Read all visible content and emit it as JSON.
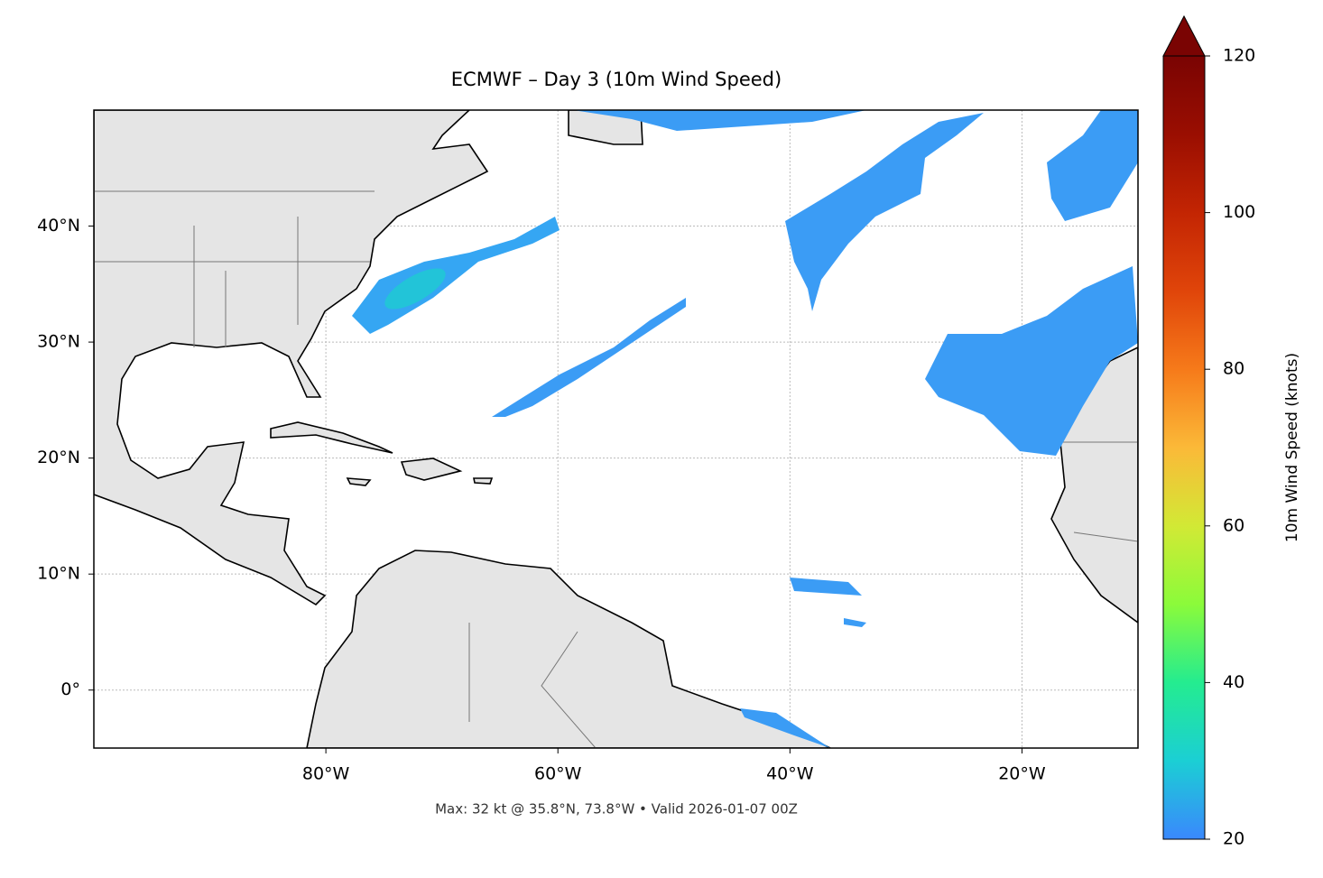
{
  "chart_data": {
    "type": "map",
    "title": "ECMWF – Day 3 (10m Wind Speed)",
    "annotation": "Max: 32 kt @ 35.8°N, 73.8°W • Valid 2026-01-07 00Z",
    "xlim": [
      -100,
      -10
    ],
    "ylim": [
      -5,
      50
    ],
    "xticks": [
      {
        "value": -80,
        "label": "80°W"
      },
      {
        "value": -60,
        "label": "60°W"
      },
      {
        "value": -40,
        "label": "40°W"
      },
      {
        "value": -20,
        "label": "20°W"
      }
    ],
    "yticks": [
      {
        "value": 0,
        "label": "0°"
      },
      {
        "value": 10,
        "label": "10°N"
      },
      {
        "value": 20,
        "label": "20°N"
      },
      {
        "value": 30,
        "label": "30°N"
      },
      {
        "value": 40,
        "label": "40°N"
      }
    ],
    "grid": true,
    "colorbar": {
      "label": "10m Wind Speed (knots)",
      "lim": [
        20,
        120
      ],
      "ticks": [
        20,
        40,
        60,
        80,
        100,
        120
      ]
    }
  }
}
